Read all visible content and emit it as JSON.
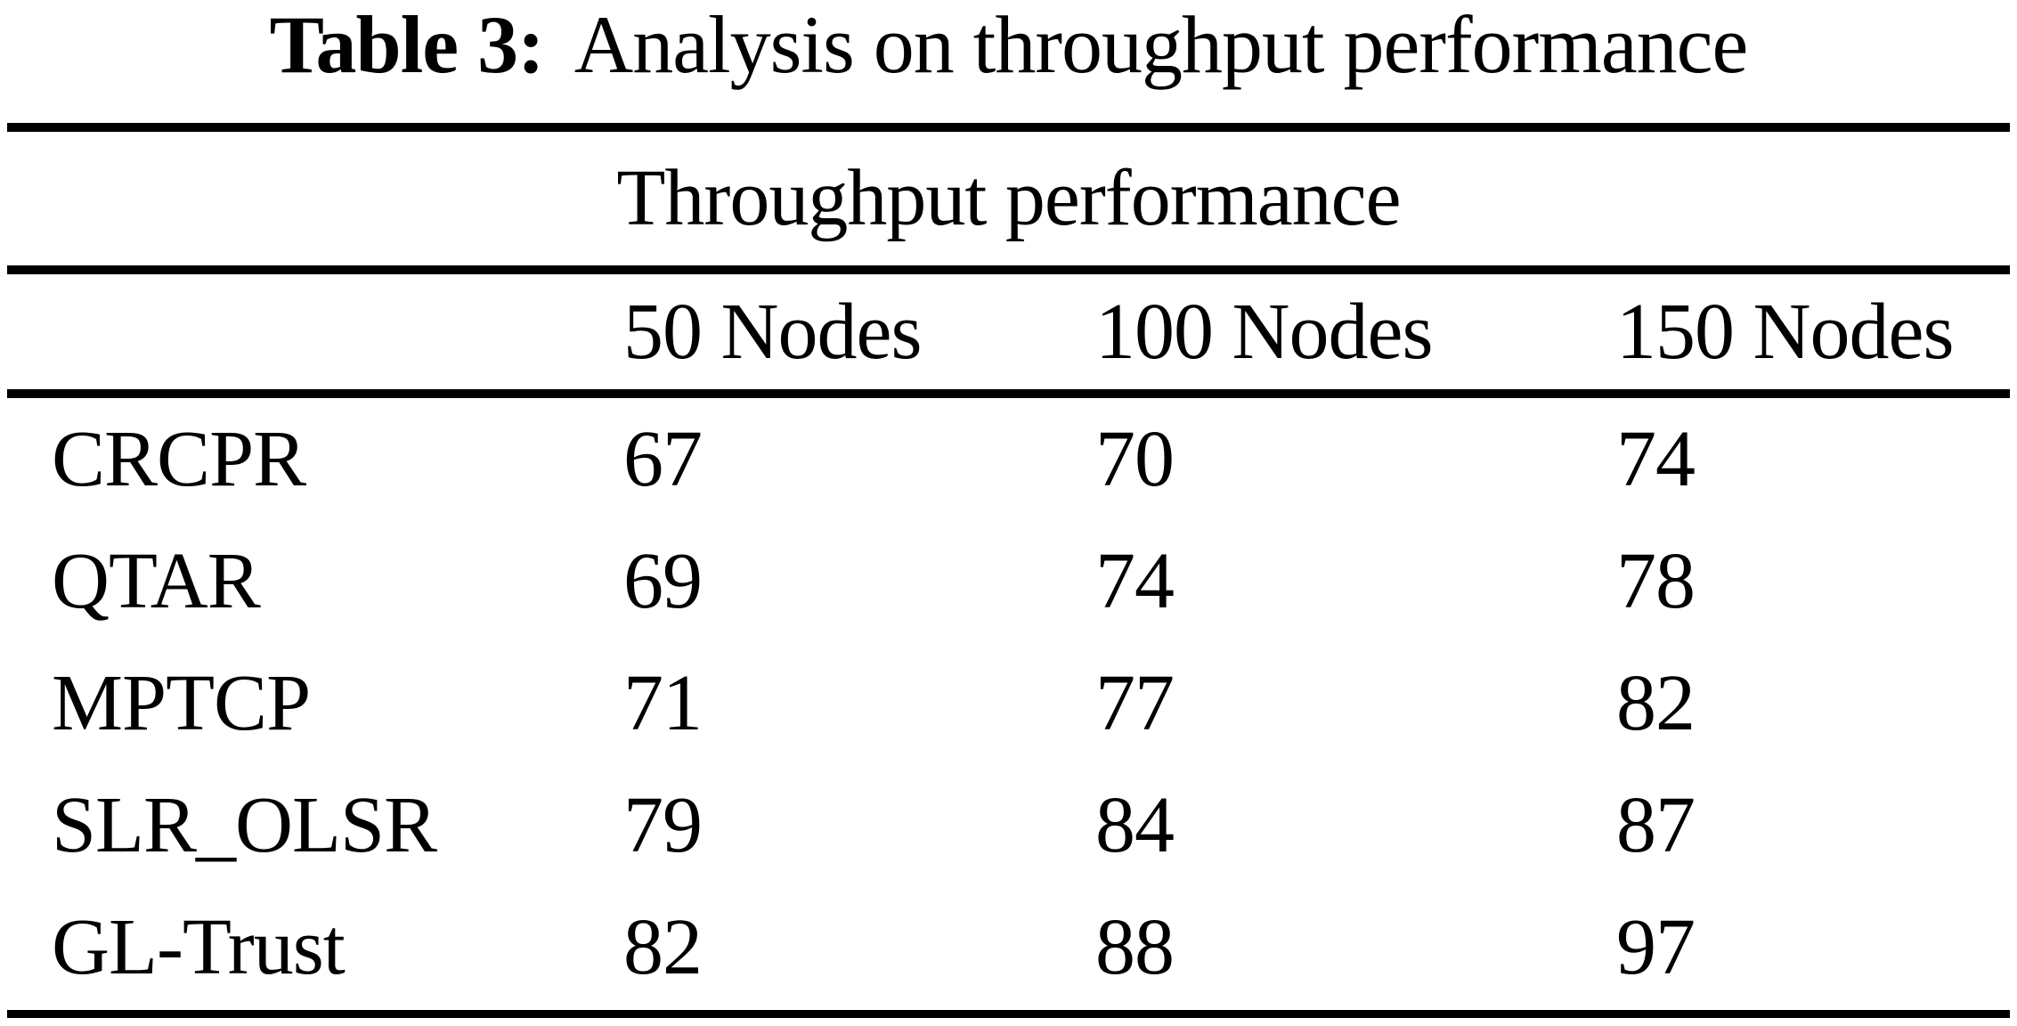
{
  "caption": {
    "label": "Table 3:",
    "text": "Analysis on throughput performance"
  },
  "table": {
    "spanning_header": "Throughput performance",
    "columns": [
      "50 Nodes",
      "100 Nodes",
      "150 Nodes"
    ],
    "rows": [
      {
        "label": "CRCPR",
        "values": [
          "67",
          "70",
          "74"
        ]
      },
      {
        "label": "QTAR",
        "values": [
          "69",
          "74",
          "78"
        ]
      },
      {
        "label": "MPTCP",
        "values": [
          "71",
          "77",
          "82"
        ]
      },
      {
        "label": "SLR_OLSR",
        "values": [
          "79",
          "84",
          "87"
        ]
      },
      {
        "label": "GL-Trust",
        "values": [
          "82",
          "88",
          "97"
        ]
      }
    ]
  },
  "colors": {
    "text": "#000000",
    "background": "#ffffff",
    "rule": "#000000"
  },
  "chart_data": {
    "type": "table",
    "title": "Table 3: Analysis on throughput performance",
    "spanning_header": "Throughput performance",
    "categories": [
      "50 Nodes",
      "100 Nodes",
      "150 Nodes"
    ],
    "series": [
      {
        "name": "CRCPR",
        "values": [
          67,
          70,
          74
        ]
      },
      {
        "name": "QTAR",
        "values": [
          69,
          74,
          78
        ]
      },
      {
        "name": "MPTCP",
        "values": [
          71,
          77,
          82
        ]
      },
      {
        "name": "SLR_OLSR",
        "values": [
          79,
          84,
          87
        ]
      },
      {
        "name": "GL-Trust",
        "values": [
          82,
          88,
          97
        ]
      }
    ]
  }
}
